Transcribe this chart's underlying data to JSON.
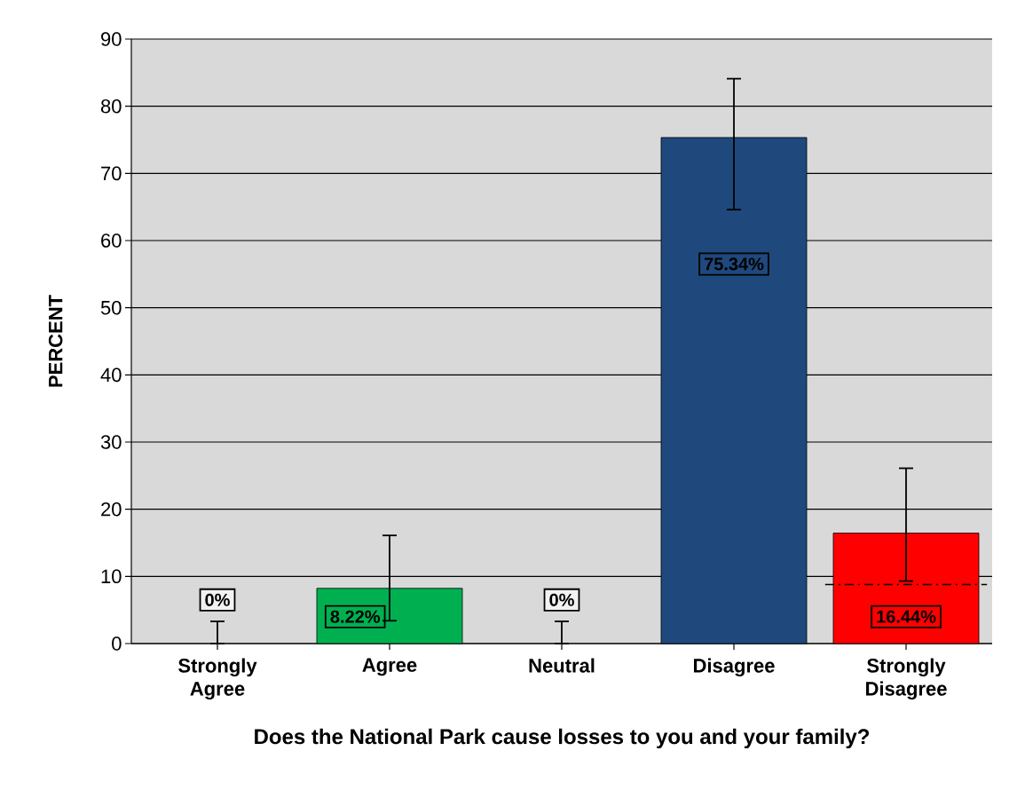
{
  "chart_data": {
    "type": "bar",
    "xlabel": "Does the National Park cause losses to you and your family?",
    "ylabel": "PERCENT",
    "categories": [
      "Strongly Agree",
      "Agree",
      "Neutral",
      "Disagree",
      "Strongly Disagree"
    ],
    "values": [
      0,
      8.22,
      0,
      75.34,
      16.44
    ],
    "colors": [
      "#1f497d",
      "#00b050",
      "#1f497d",
      "#1f497d",
      "#ff0000"
    ],
    "errors": [
      [
        0,
        3.3
      ],
      [
        3.4,
        16.1
      ],
      [
        0,
        3.3
      ],
      [
        64.6,
        84.1
      ],
      [
        9.3,
        26.1
      ]
    ],
    "value_labels": [
      "0%",
      "8.22%",
      "0%",
      "75.34%",
      "16.44%"
    ],
    "ylim": [
      0,
      90
    ],
    "yticks": [
      0,
      10,
      20,
      30,
      40,
      50,
      60,
      70,
      80,
      90
    ],
    "grid": "y",
    "ref_lines": [
      {
        "axis": "y",
        "value": 8.8,
        "line_style": "dashed"
      }
    ]
  }
}
